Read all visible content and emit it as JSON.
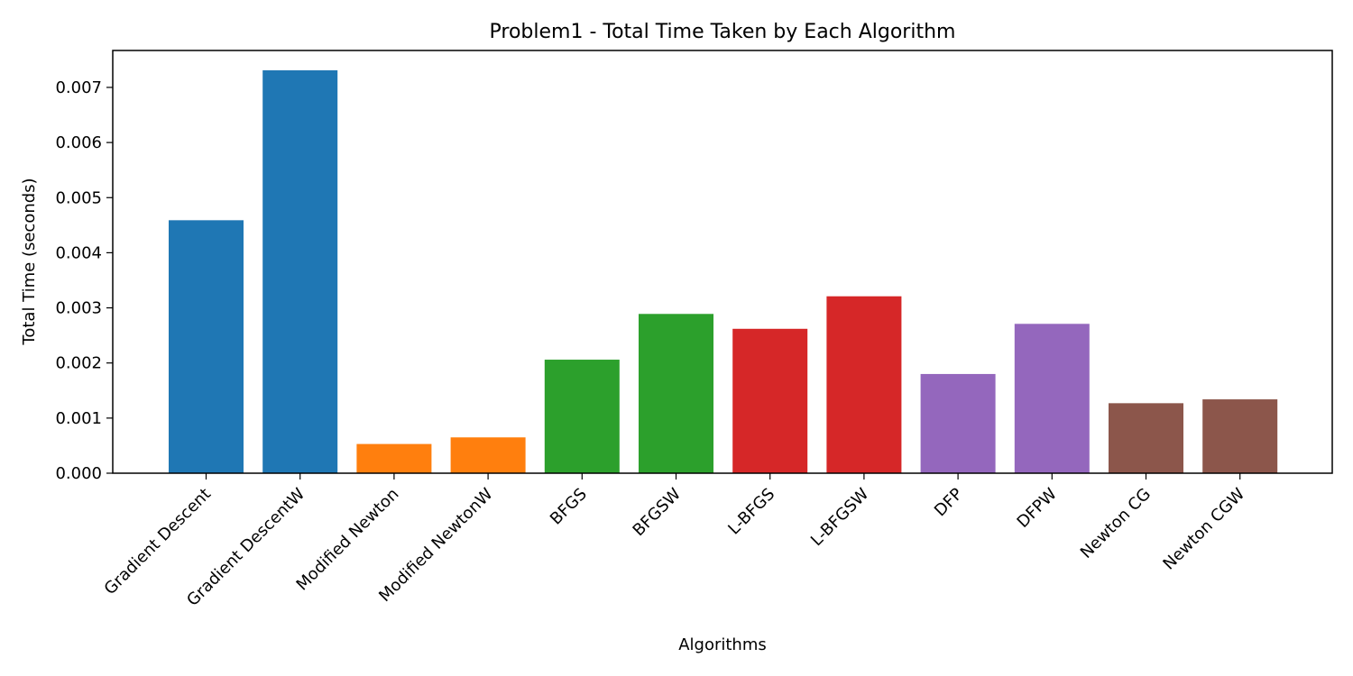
{
  "chart_data": {
    "type": "bar",
    "title": "Problem1 - Total Time Taken by Each Algorithm",
    "xlabel": "Algorithms",
    "ylabel": "Total Time (seconds)",
    "ylim": [
      0,
      0.00767
    ],
    "yticks": [
      "0.000",
      "0.001",
      "0.002",
      "0.003",
      "0.004",
      "0.005",
      "0.006",
      "0.007"
    ],
    "grid": false,
    "categories": [
      "Gradient Descent",
      "Gradient DescentW",
      "Modified Newton",
      "Modified NewtonW",
      "BFGS",
      "BFGSW",
      "L-BFGS",
      "L-BFGSW",
      "DFP",
      "DFPW",
      "Newton CG",
      "Newton CGW"
    ],
    "values": [
      0.00459,
      0.00731,
      0.00053,
      0.00065,
      0.00206,
      0.00289,
      0.00262,
      0.00321,
      0.0018,
      0.00271,
      0.00127,
      0.00134
    ],
    "colors": [
      "#1f77b4",
      "#1f77b4",
      "#ff7f0e",
      "#ff7f0e",
      "#2ca02c",
      "#2ca02c",
      "#d62728",
      "#d62728",
      "#9467bd",
      "#9467bd",
      "#8c564b",
      "#8c564b"
    ]
  }
}
